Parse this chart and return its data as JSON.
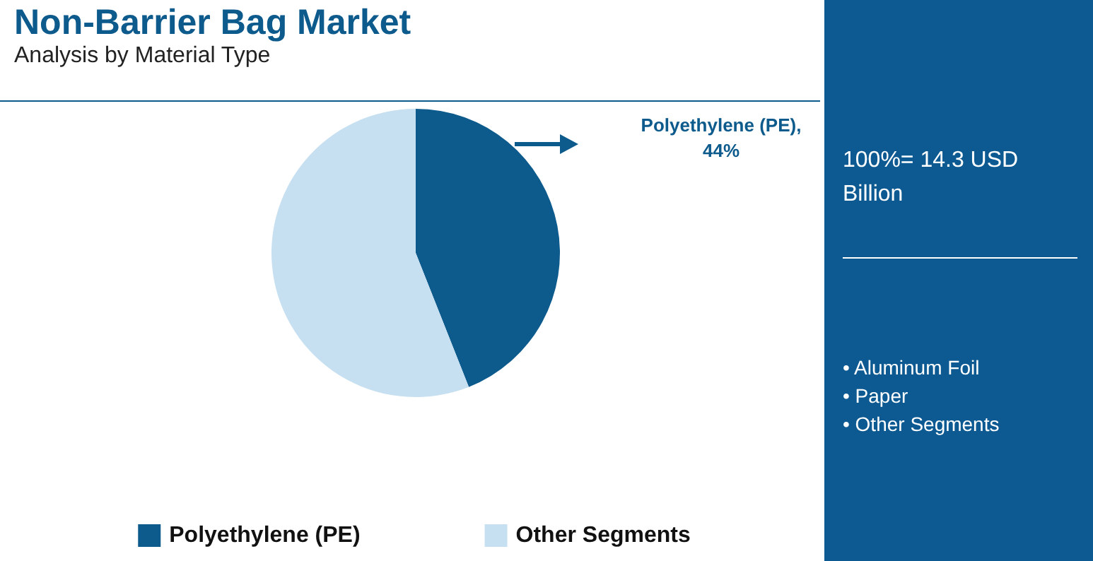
{
  "chart_data": {
    "type": "pie",
    "title": "Non-Barrier Bag Market",
    "subtitle": "Analysis by Material Type",
    "categories": [
      "Polyethylene (PE)",
      "Other Segments"
    ],
    "values": [
      44,
      56
    ],
    "colors": [
      "#0d5a8c",
      "#c6e0f1"
    ],
    "legend": "bottom",
    "annotations": [
      "Polyethylene (PE), 44%",
      "100%= 14.3 USD Billion",
      "• Aluminum Foil",
      "• Paper",
      "• Other Segments"
    ]
  }
}
